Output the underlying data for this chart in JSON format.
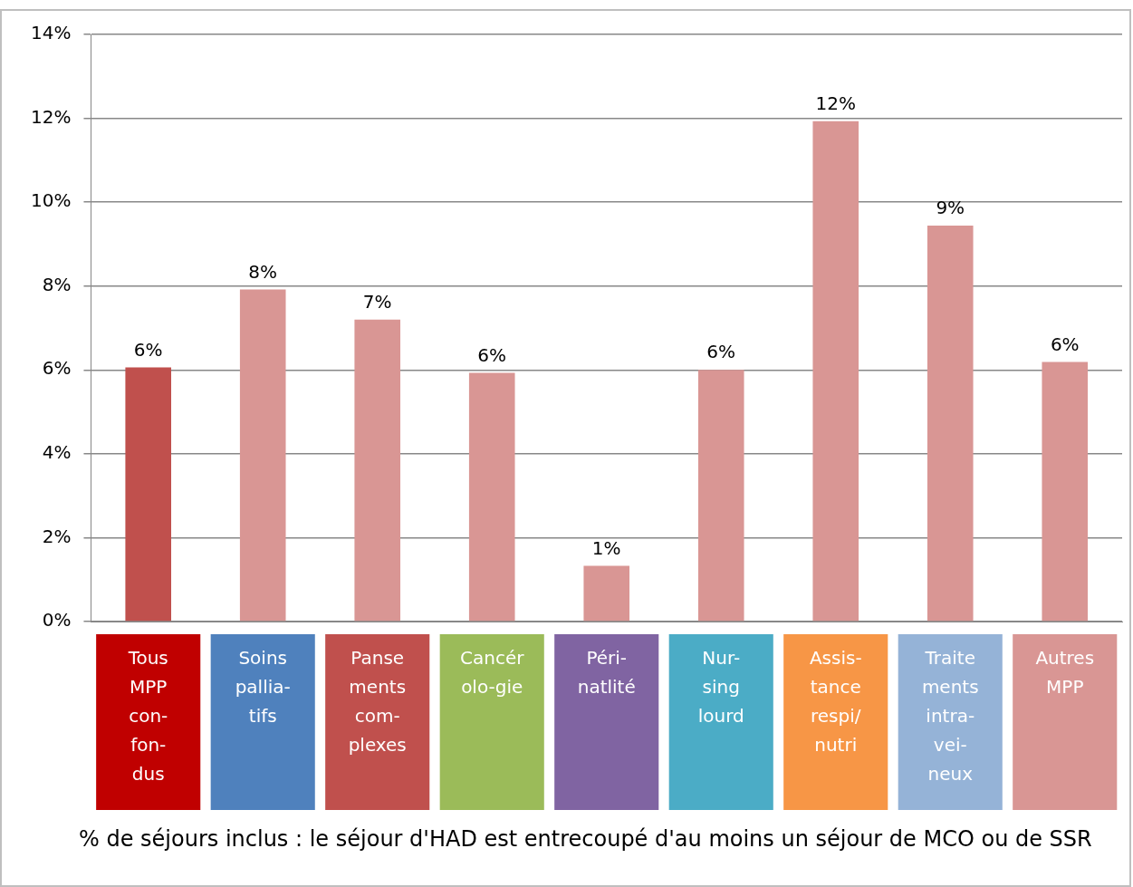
{
  "chart_data": {
    "type": "bar",
    "categories": [
      "Tous\nMPP\ncon-\nfon-\ndus",
      "Soins\npallia-\ntifs",
      "Panse\nments\ncom-\nplexes",
      "Cancér\nolo-gie",
      "Péri-\nnatlité",
      "Nur-\nsing\nlourd",
      "Assis-\ntance\nrespi/\nnutri",
      "Traite\nments\nintra-\nvei-\nneux",
      "Autres\nMPP"
    ],
    "values": [
      6.06,
      7.92,
      7.2,
      5.93,
      1.33,
      6.0,
      11.93,
      9.44,
      6.19
    ],
    "value_labels": [
      "6%",
      "8%",
      "7%",
      "6%",
      "1%",
      "6%",
      "12%",
      "9%",
      "6%"
    ],
    "colors": [
      "#c0504d",
      "#d99694",
      "#d99694",
      "#d99694",
      "#d99694",
      "#d99694",
      "#d99694",
      "#d99694",
      "#d99694"
    ],
    "ylim": [
      0,
      14
    ],
    "yticks": [
      {
        "value": 0,
        "label": "0%"
      },
      {
        "value": 2,
        "label": "2%"
      },
      {
        "value": 4,
        "label": "4%"
      },
      {
        "value": 6,
        "label": "6%"
      },
      {
        "value": 8,
        "label": "8%"
      },
      {
        "value": 10,
        "label": "10%"
      },
      {
        "value": 12,
        "label": "12%"
      },
      {
        "value": 14,
        "label": "14%"
      }
    ],
    "grid": "y",
    "annotations": [
      "% de séjours inclus : le séjour d'HAD est entrecoupé d'au moins un séjour de MCO ou de SSR"
    ]
  }
}
